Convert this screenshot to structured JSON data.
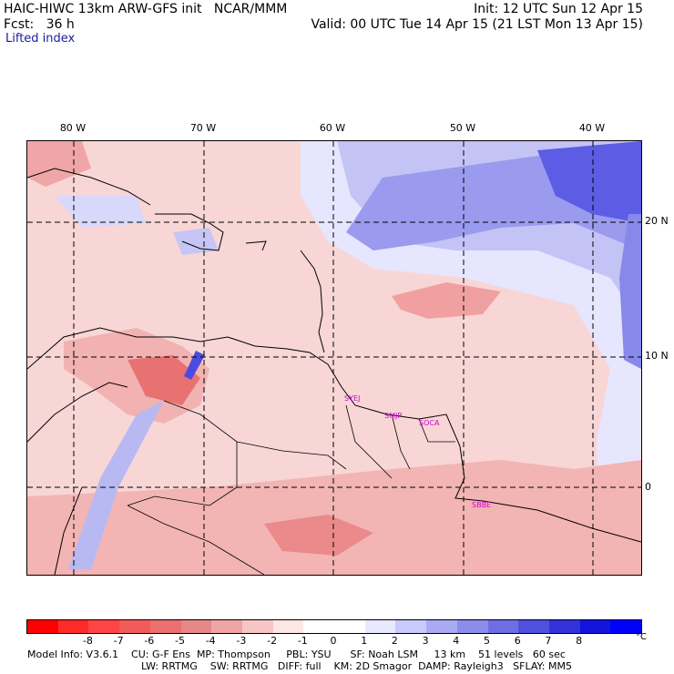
{
  "header": {
    "title_left": "HAIC-HIWC 13km ARW-GFS init   NCAR/MMM",
    "fcst_label": "Fcst:   36 h",
    "init": "Init: 12 UTC Sun 12 Apr 15",
    "valid": "Valid: 00 UTC Tue 14 Apr 15 (21 LST Mon 13 Apr 15)"
  },
  "field_name": "Lifted index",
  "map": {
    "lon_labels": [
      "80 W",
      "70 W",
      "60 W",
      "50 W",
      "40 W"
    ],
    "lat_labels": [
      "20 N",
      "10 N",
      "0"
    ],
    "cities": [
      "SYEJ",
      "SMJP",
      "SOCA",
      "SBBE"
    ]
  },
  "colorbar": {
    "colors": [
      "#ff0000",
      "#ff2b2b",
      "#ff4545",
      "#f35a5a",
      "#ec7070",
      "#e78888",
      "#f0a5a5",
      "#f8c5c5",
      "#fde6e6",
      "#ffffff",
      "#ffffff",
      "#e8e8ff",
      "#c9c9fb",
      "#aaaaf3",
      "#8c8ceb",
      "#6e6ee3",
      "#5050de",
      "#3232da",
      "#1414dc",
      "#0000ff"
    ],
    "ticks": [
      "-8",
      "-7",
      "-6",
      "-5",
      "-4",
      "-3",
      "-2",
      "-1",
      "0",
      "1",
      "2",
      "3",
      "4",
      "5",
      "6",
      "7",
      "8"
    ],
    "unit": "°C"
  },
  "footer": {
    "line1": "Model Info: V3.6.1    CU: G-F Ens  MP: Thompson     PBL: YSU      SF: Noah LSM     13 km    51 levels   60 sec",
    "line2": "LW: RRTMG    SW: RRTMG   DIFF: full    KM: 2D Smagor  DAMP: Rayleigh3   SFLAY: MM5"
  },
  "colors": {
    "stable_dark": "#3d3df0",
    "stable_light": "#c8c8f8",
    "unstable_light": "#f7d2d2",
    "unstable_dark": "#e76a6a",
    "city_label": "#d000d0"
  }
}
